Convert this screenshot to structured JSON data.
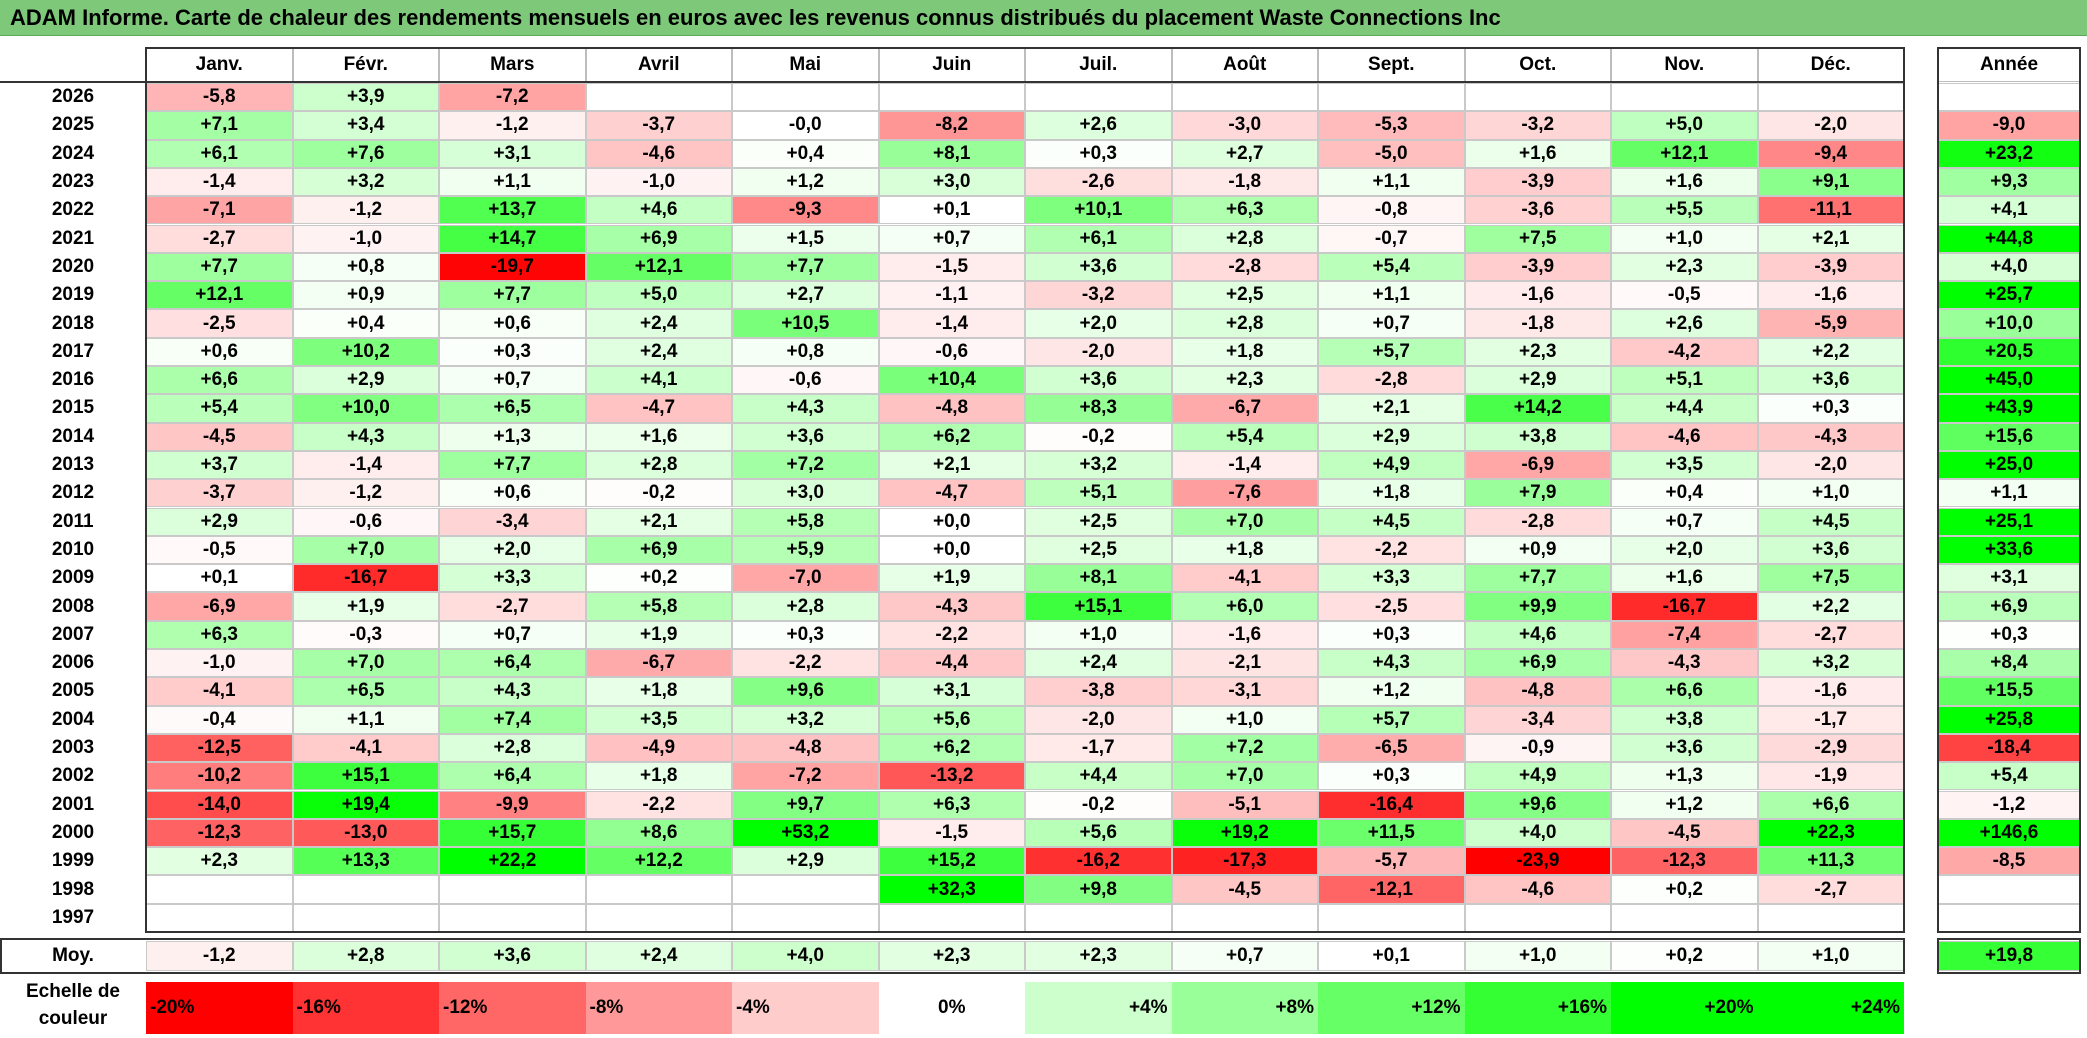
{
  "title": "ADAM Informe. Carte de chaleur des rendements mensuels en euros avec les revenus connus distribués du placement Waste Connections Inc",
  "months": [
    "Janv.",
    "Févr.",
    "Mars",
    "Avril",
    "Mai",
    "Juin",
    "Juil.",
    "Août",
    "Sept.",
    "Oct.",
    "Nov.",
    "Déc."
  ],
  "annual_header": "Année",
  "avg_label": "Moy.",
  "scale_label": "Echelle de couleur",
  "scale_steps": [
    "-20%",
    "-16%",
    "-12%",
    "-8%",
    "-4%",
    "0%",
    "+4%",
    "+8%",
    "+12%",
    "+16%",
    "+20%",
    "+24%"
  ],
  "colors": {
    "negative_max": "#ff0000",
    "neutral": "#ffffff",
    "positive_max": "#00ff00",
    "title_bg": "#7ec87a"
  },
  "chart_data": {
    "type": "heatmap",
    "title": "ADAM Informe. Carte de chaleur des rendements mensuels en euros avec les revenus connus distribués du placement Waste Connections Inc",
    "columns": [
      "Janv.",
      "Févr.",
      "Mars",
      "Avril",
      "Mai",
      "Juin",
      "Juil.",
      "Août",
      "Sept.",
      "Oct.",
      "Nov.",
      "Déc.",
      "Année"
    ],
    "rows": [
      {
        "year": "2026",
        "values": [
          "-5,8",
          "+3,9",
          "-7,2",
          "",
          "",
          "",
          "",
          "",
          "",
          "",
          "",
          ""
        ],
        "annual": ""
      },
      {
        "year": "2025",
        "values": [
          "+7,1",
          "+3,4",
          "-1,2",
          "-3,7",
          "-0,0",
          "-8,2",
          "+2,6",
          "-3,0",
          "-5,3",
          "-3,2",
          "+5,0",
          "-2,0"
        ],
        "annual": "-9,0"
      },
      {
        "year": "2024",
        "values": [
          "+6,1",
          "+7,6",
          "+3,1",
          "-4,6",
          "+0,4",
          "+8,1",
          "+0,3",
          "+2,7",
          "-5,0",
          "+1,6",
          "+12,1",
          "-9,4"
        ],
        "annual": "+23,2"
      },
      {
        "year": "2023",
        "values": [
          "-1,4",
          "+3,2",
          "+1,1",
          "-1,0",
          "+1,2",
          "+3,0",
          "-2,6",
          "-1,8",
          "+1,1",
          "-3,9",
          "+1,6",
          "+9,1"
        ],
        "annual": "+9,3"
      },
      {
        "year": "2022",
        "values": [
          "-7,1",
          "-1,2",
          "+13,7",
          "+4,6",
          "-9,3",
          "+0,1",
          "+10,1",
          "+6,3",
          "-0,8",
          "-3,6",
          "+5,5",
          "-11,1"
        ],
        "annual": "+4,1"
      },
      {
        "year": "2021",
        "values": [
          "-2,7",
          "-1,0",
          "+14,7",
          "+6,9",
          "+1,5",
          "+0,7",
          "+6,1",
          "+2,8",
          "-0,7",
          "+7,5",
          "+1,0",
          "+2,1"
        ],
        "annual": "+44,8"
      },
      {
        "year": "2020",
        "values": [
          "+7,7",
          "+0,8",
          "-19,7",
          "+12,1",
          "+7,7",
          "-1,5",
          "+3,6",
          "-2,8",
          "+5,4",
          "-3,9",
          "+2,3",
          "-3,9"
        ],
        "annual": "+4,0"
      },
      {
        "year": "2019",
        "values": [
          "+12,1",
          "+0,9",
          "+7,7",
          "+5,0",
          "+2,7",
          "-1,1",
          "-3,2",
          "+2,5",
          "+1,1",
          "-1,6",
          "-0,5",
          "-1,6"
        ],
        "annual": "+25,7"
      },
      {
        "year": "2018",
        "values": [
          "-2,5",
          "+0,4",
          "+0,6",
          "+2,4",
          "+10,5",
          "-1,4",
          "+2,0",
          "+2,8",
          "+0,7",
          "-1,8",
          "+2,6",
          "-5,9"
        ],
        "annual": "+10,0"
      },
      {
        "year": "2017",
        "values": [
          "+0,6",
          "+10,2",
          "+0,3",
          "+2,4",
          "+0,8",
          "-0,6",
          "-2,0",
          "+1,8",
          "+5,7",
          "+2,3",
          "-4,2",
          "+2,2"
        ],
        "annual": "+20,5"
      },
      {
        "year": "2016",
        "values": [
          "+6,6",
          "+2,9",
          "+0,7",
          "+4,1",
          "-0,6",
          "+10,4",
          "+3,6",
          "+2,3",
          "-2,8",
          "+2,9",
          "+5,1",
          "+3,6"
        ],
        "annual": "+45,0"
      },
      {
        "year": "2015",
        "values": [
          "+5,4",
          "+10,0",
          "+6,5",
          "-4,7",
          "+4,3",
          "-4,8",
          "+8,3",
          "-6,7",
          "+2,1",
          "+14,2",
          "+4,4",
          "+0,3"
        ],
        "annual": "+43,9"
      },
      {
        "year": "2014",
        "values": [
          "-4,5",
          "+4,3",
          "+1,3",
          "+1,6",
          "+3,6",
          "+6,2",
          "-0,2",
          "+5,4",
          "+2,9",
          "+3,8",
          "-4,6",
          "-4,3"
        ],
        "annual": "+15,6"
      },
      {
        "year": "2013",
        "values": [
          "+3,7",
          "-1,4",
          "+7,7",
          "+2,8",
          "+7,2",
          "+2,1",
          "+3,2",
          "-1,4",
          "+4,9",
          "-6,9",
          "+3,5",
          "-2,0"
        ],
        "annual": "+25,0"
      },
      {
        "year": "2012",
        "values": [
          "-3,7",
          "-1,2",
          "+0,6",
          "-0,2",
          "+3,0",
          "-4,7",
          "+5,1",
          "-7,6",
          "+1,8",
          "+7,9",
          "+0,4",
          "+1,0"
        ],
        "annual": "+1,1"
      },
      {
        "year": "2011",
        "values": [
          "+2,9",
          "-0,6",
          "-3,4",
          "+2,1",
          "+5,8",
          "+0,0",
          "+2,5",
          "+7,0",
          "+4,5",
          "-2,8",
          "+0,7",
          "+4,5"
        ],
        "annual": "+25,1"
      },
      {
        "year": "2010",
        "values": [
          "-0,5",
          "+7,0",
          "+2,0",
          "+6,9",
          "+5,9",
          "+0,0",
          "+2,5",
          "+1,8",
          "-2,2",
          "+0,9",
          "+2,0",
          "+3,6"
        ],
        "annual": "+33,6"
      },
      {
        "year": "2009",
        "values": [
          "+0,1",
          "-16,7",
          "+3,3",
          "+0,2",
          "-7,0",
          "+1,9",
          "+8,1",
          "-4,1",
          "+3,3",
          "+7,7",
          "+1,6",
          "+7,5"
        ],
        "annual": "+3,1"
      },
      {
        "year": "2008",
        "values": [
          "-6,9",
          "+1,9",
          "-2,7",
          "+5,8",
          "+2,8",
          "-4,3",
          "+15,1",
          "+6,0",
          "-2,5",
          "+9,9",
          "-16,7",
          "+2,2"
        ],
        "annual": "+6,9"
      },
      {
        "year": "2007",
        "values": [
          "+6,3",
          "-0,3",
          "+0,7",
          "+1,9",
          "+0,3",
          "-2,2",
          "+1,0",
          "-1,6",
          "+0,3",
          "+4,6",
          "-7,4",
          "-2,7"
        ],
        "annual": "+0,3"
      },
      {
        "year": "2006",
        "values": [
          "-1,0",
          "+7,0",
          "+6,4",
          "-6,7",
          "-2,2",
          "-4,4",
          "+2,4",
          "-2,1",
          "+4,3",
          "+6,9",
          "-4,3",
          "+3,2"
        ],
        "annual": "+8,4"
      },
      {
        "year": "2005",
        "values": [
          "-4,1",
          "+6,5",
          "+4,3",
          "+1,8",
          "+9,6",
          "+3,1",
          "-3,8",
          "-3,1",
          "+1,2",
          "-4,8",
          "+6,6",
          "-1,6"
        ],
        "annual": "+15,5"
      },
      {
        "year": "2004",
        "values": [
          "-0,4",
          "+1,1",
          "+7,4",
          "+3,5",
          "+3,2",
          "+5,6",
          "-2,0",
          "+1,0",
          "+5,7",
          "-3,4",
          "+3,8",
          "-1,7"
        ],
        "annual": "+25,8"
      },
      {
        "year": "2003",
        "values": [
          "-12,5",
          "-4,1",
          "+2,8",
          "-4,9",
          "-4,8",
          "+6,2",
          "-1,7",
          "+7,2",
          "-6,5",
          "-0,9",
          "+3,6",
          "-2,9"
        ],
        "annual": "-18,4"
      },
      {
        "year": "2002",
        "values": [
          "-10,2",
          "+15,1",
          "+6,4",
          "+1,8",
          "-7,2",
          "-13,2",
          "+4,4",
          "+7,0",
          "+0,3",
          "+4,9",
          "+1,3",
          "-1,9"
        ],
        "annual": "+5,4"
      },
      {
        "year": "2001",
        "values": [
          "-14,0",
          "+19,4",
          "-9,9",
          "-2,2",
          "+9,7",
          "+6,3",
          "-0,2",
          "-5,1",
          "-16,4",
          "+9,6",
          "+1,2",
          "+6,6"
        ],
        "annual": "-1,2"
      },
      {
        "year": "2000",
        "values": [
          "-12,3",
          "-13,0",
          "+15,7",
          "+8,6",
          "+53,2",
          "-1,5",
          "+5,6",
          "+19,2",
          "+11,5",
          "+4,0",
          "-4,5",
          "+22,3"
        ],
        "annual": "+146,6"
      },
      {
        "year": "1999",
        "values": [
          "+2,3",
          "+13,3",
          "+22,2",
          "+12,2",
          "+2,9",
          "+15,2",
          "-16,2",
          "-17,3",
          "-5,7",
          "-23,9",
          "-12,3",
          "+11,3"
        ],
        "annual": "-8,5"
      },
      {
        "year": "1998",
        "values": [
          "",
          "",
          "",
          "",
          "",
          "+32,3",
          "+9,8",
          "-4,5",
          "-12,1",
          "-4,6",
          "+0,2",
          "-2,7"
        ],
        "annual": ""
      },
      {
        "year": "1997",
        "values": [
          "",
          "",
          "",
          "",
          "",
          "",
          "",
          "",
          "",
          "",
          "",
          ""
        ],
        "annual": ""
      }
    ],
    "average": {
      "values": [
        "-1,2",
        "+2,8",
        "+3,6",
        "+2,4",
        "+4,0",
        "+2,3",
        "+2,3",
        "+0,7",
        "+0,1",
        "+1,0",
        "+0,2",
        "+1,0"
      ],
      "annual": "+19,8"
    }
  }
}
